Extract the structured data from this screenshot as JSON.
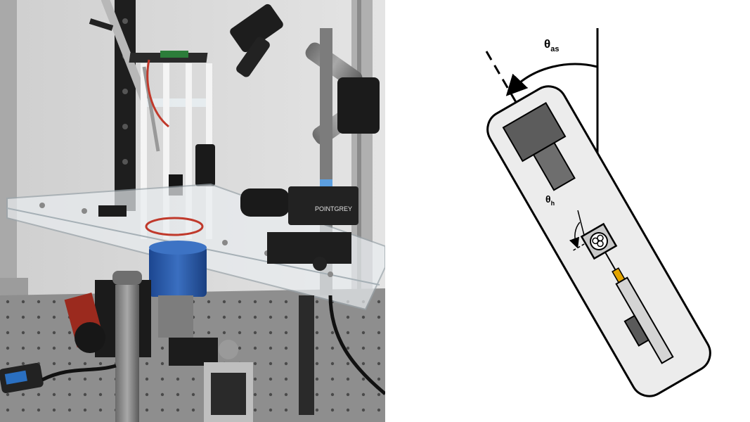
{
  "photo": {
    "brand_label": "POINTGREY"
  },
  "diagram": {
    "angle_body_label": {
      "symbol": "θ",
      "subscript": "as"
    },
    "angle_head_label": {
      "symbol": "θ",
      "subscript": "h"
    }
  },
  "colors": {
    "outline": "#000000",
    "body_fill": "#ececec",
    "camera_dark": "#5c5c5c",
    "camera_mid": "#6e6e6e",
    "chamber_fill": "#c9c9c9",
    "probe": "#e2a400",
    "rail_light": "#d4d4d4",
    "rail_dark": "#5a5a5a",
    "table": "#8e8e8e",
    "mount_blue": "#2a5ba8"
  }
}
